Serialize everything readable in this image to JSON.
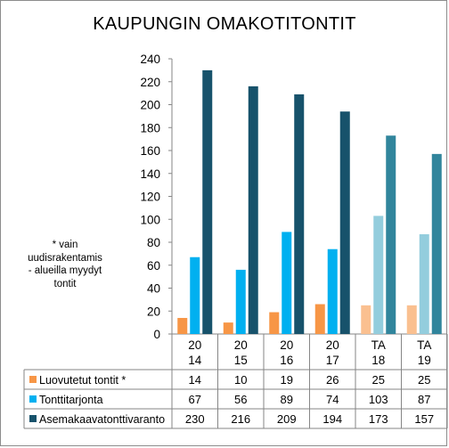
{
  "chart_data": {
    "type": "bar",
    "title": "KAUPUNGIN  OMAKOTITONTIT",
    "note": "* vain uudisrakentamis - alueilla myydyt tontit",
    "note_lines": [
      "* vain",
      "uudisrakentamis",
      "- alueilla myydyt",
      "tontit"
    ],
    "categories": [
      [
        "20",
        "14"
      ],
      [
        "20",
        "15"
      ],
      [
        "20",
        "16"
      ],
      [
        "20",
        "17"
      ],
      [
        "TA",
        "18"
      ],
      [
        "TA",
        "19"
      ]
    ],
    "ylim": [
      0,
      240
    ],
    "yticks": [
      0,
      20,
      40,
      60,
      80,
      100,
      120,
      140,
      160,
      180,
      200,
      220,
      240
    ],
    "grid": false,
    "legend": "table-below",
    "series": [
      {
        "name": "Luovutetut tontit  *",
        "values": [
          14,
          10,
          19,
          26,
          25,
          25
        ],
        "color": "#f79646",
        "light_color": "#fac090"
      },
      {
        "name": "Tonttitarjonta",
        "values": [
          67,
          56,
          89,
          74,
          103,
          87
        ],
        "color": "#00b0f0",
        "light_color": "#93cddd"
      },
      {
        "name": "Asemakaavatonttivaranto",
        "values": [
          230,
          216,
          209,
          194,
          173,
          157
        ],
        "color": "#17526b",
        "light_color": "#31859c"
      }
    ],
    "estimate_from_index": 4
  }
}
